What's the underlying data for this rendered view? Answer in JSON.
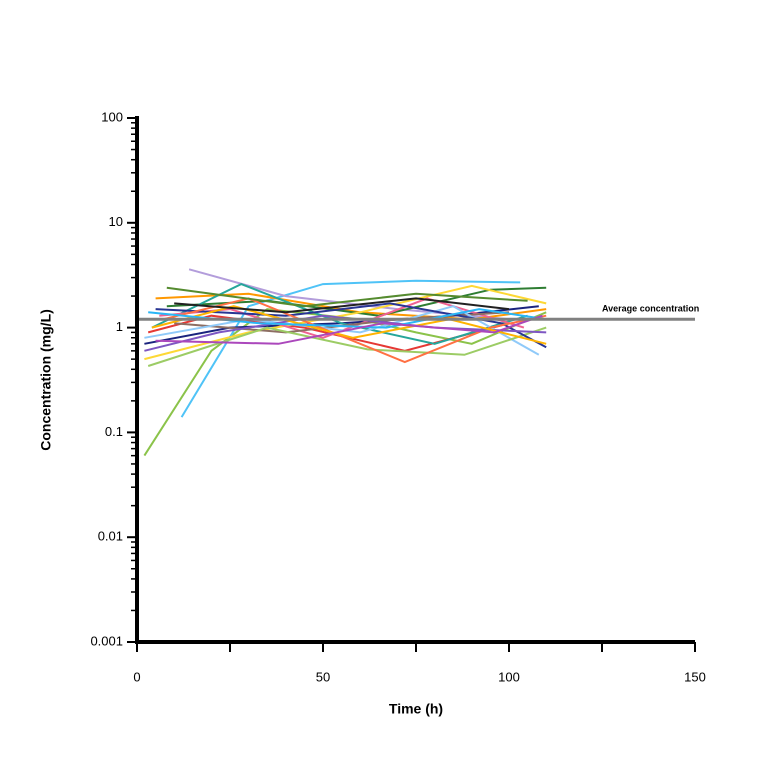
{
  "chart_data": {
    "type": "line",
    "xlabel": "Time (h)",
    "ylabel": "Concentration (mg/L)",
    "xlim": [
      0,
      150
    ],
    "xticks": [
      0,
      50,
      100,
      150
    ],
    "xminorticks": [
      25,
      75,
      125
    ],
    "ylim": [
      0.001,
      100
    ],
    "yscale": "log",
    "grid": false,
    "yticks": [
      0.001,
      0.01,
      0.1,
      1,
      10,
      100
    ],
    "yminorticks": [
      0.002,
      0.003,
      0.004,
      0.005,
      0.006,
      0.007,
      0.008,
      0.009,
      0.02,
      0.03,
      0.04,
      0.05,
      0.06,
      0.07,
      0.08,
      0.09,
      0.2,
      0.3,
      0.4,
      0.5,
      0.6,
      0.7,
      0.8,
      0.9,
      2,
      3,
      4,
      5,
      6,
      7,
      8,
      9,
      20,
      30,
      40,
      50,
      60,
      70,
      80,
      90
    ],
    "reference_line": {
      "value": 1.2,
      "label": "Average concentration",
      "color": "#808080"
    },
    "series": [
      {
        "color": "#8bc34a",
        "x": [
          2,
          20,
          35,
          60,
          75,
          90,
          110
        ],
        "values": [
          0.06,
          0.6,
          1.5,
          1.2,
          0.9,
          0.7,
          1.4
        ]
      },
      {
        "color": "#4fc3f7",
        "x": [
          12,
          30,
          50,
          75,
          103
        ],
        "values": [
          0.14,
          1.6,
          2.6,
          2.8,
          2.7
        ]
      },
      {
        "color": "#b39ddb",
        "x": [
          14,
          40,
          70,
          100
        ],
        "values": [
          3.6,
          2.0,
          1.5,
          1.2
        ]
      },
      {
        "color": "#ff9800",
        "x": [
          5,
          30,
          60,
          90,
          110
        ],
        "values": [
          1.9,
          2.1,
          1.4,
          1.2,
          1.5
        ]
      },
      {
        "color": "#1a237e",
        "x": [
          2,
          25,
          55,
          85,
          108
        ],
        "values": [
          0.7,
          1.0,
          1.1,
          1.3,
          1.6
        ]
      },
      {
        "color": "#e53935",
        "x": [
          3,
          20,
          45,
          72,
          100
        ],
        "values": [
          0.9,
          1.3,
          1.0,
          0.6,
          1.1
        ]
      },
      {
        "color": "#2e7d32",
        "x": [
          8,
          35,
          65,
          95,
          110
        ],
        "values": [
          1.6,
          1.8,
          1.3,
          2.3,
          2.4
        ]
      },
      {
        "color": "#fdd835",
        "x": [
          2,
          30,
          60,
          90,
          110
        ],
        "values": [
          0.5,
          0.9,
          1.4,
          2.5,
          1.7
        ]
      },
      {
        "color": "#26a69a",
        "x": [
          4,
          28,
          55,
          80,
          105
        ],
        "values": [
          1.0,
          2.6,
          1.1,
          0.7,
          1.3
        ]
      },
      {
        "color": "#f06292",
        "x": [
          6,
          25,
          50,
          78,
          104
        ],
        "values": [
          1.3,
          1.5,
          0.8,
          1.9,
          1.0
        ]
      },
      {
        "color": "#8d6e63",
        "x": [
          10,
          40,
          70,
          100
        ],
        "values": [
          1.1,
          0.9,
          1.2,
          1.4
        ]
      },
      {
        "color": "#90caf9",
        "x": [
          2,
          30,
          60,
          85,
          108
        ],
        "values": [
          0.8,
          1.2,
          0.9,
          1.6,
          0.55
        ]
      },
      {
        "color": "#9ccc65",
        "x": [
          3,
          35,
          62,
          88,
          110
        ],
        "values": [
          0.43,
          1.0,
          0.62,
          0.55,
          1.0
        ]
      },
      {
        "color": "#283593",
        "x": [
          5,
          40,
          68,
          98,
          110
        ],
        "values": [
          1.5,
          1.3,
          1.7,
          1.1,
          0.65
        ]
      },
      {
        "color": "#ff7043",
        "x": [
          7,
          30,
          72,
          95,
          110
        ],
        "values": [
          1.2,
          1.9,
          0.47,
          1.0,
          1.3
        ]
      },
      {
        "color": "#7e57c2",
        "x": [
          2,
          22,
          50,
          80,
          110
        ],
        "values": [
          0.6,
          0.9,
          1.3,
          1.0,
          0.9
        ]
      },
      {
        "color": "#558b2f",
        "x": [
          8,
          45,
          75,
          105
        ],
        "values": [
          2.4,
          1.6,
          2.1,
          1.8
        ]
      },
      {
        "color": "#ffb300",
        "x": [
          4,
          26,
          58,
          84,
          110
        ],
        "values": [
          1.0,
          1.6,
          0.8,
          1.2,
          0.7
        ]
      },
      {
        "color": "#29b6f6",
        "x": [
          3,
          33,
          67,
          92,
          110
        ],
        "values": [
          1.4,
          1.1,
          1.0,
          1.5,
          1.2
        ]
      },
      {
        "color": "#ab47bc",
        "x": [
          5,
          38,
          66,
          96,
          109
        ],
        "values": [
          0.75,
          0.7,
          1.1,
          0.9,
          1.3
        ]
      },
      {
        "color": "#212121",
        "x": [
          10,
          40,
          75,
          100
        ],
        "values": [
          1.7,
          1.4,
          1.9,
          1.5
        ]
      }
    ]
  }
}
